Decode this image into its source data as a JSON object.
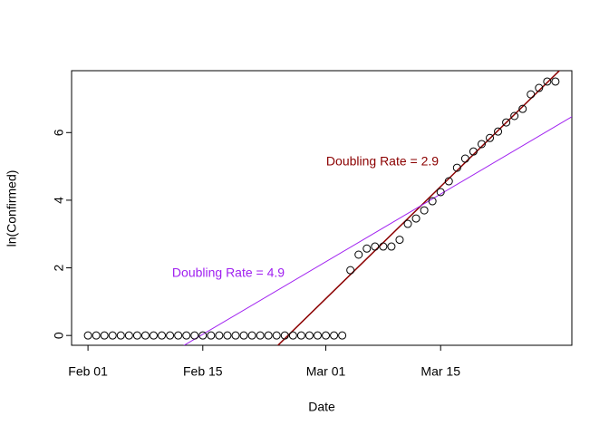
{
  "chart_data": {
    "type": "scatter",
    "xlabel": "Date",
    "ylabel": "ln(Confirmed)",
    "x": [
      "Feb 01",
      "Feb 02",
      "Feb 03",
      "Feb 04",
      "Feb 05",
      "Feb 06",
      "Feb 07",
      "Feb 08",
      "Feb 09",
      "Feb 10",
      "Feb 11",
      "Feb 12",
      "Feb 13",
      "Feb 14",
      "Feb 15",
      "Feb 16",
      "Feb 17",
      "Feb 18",
      "Feb 19",
      "Feb 20",
      "Feb 21",
      "Feb 22",
      "Feb 23",
      "Feb 24",
      "Feb 25",
      "Feb 26",
      "Feb 27",
      "Feb 28",
      "Feb 29",
      "Mar 01",
      "Mar 02",
      "Mar 03",
      "Mar 04",
      "Mar 05",
      "Mar 06",
      "Mar 07",
      "Mar 08",
      "Mar 09",
      "Mar 10",
      "Mar 11",
      "Mar 12",
      "Mar 13",
      "Mar 14",
      "Mar 15",
      "Mar 16",
      "Mar 17",
      "Mar 18",
      "Mar 19",
      "Mar 20",
      "Mar 21",
      "Mar 22",
      "Mar 23",
      "Mar 24",
      "Mar 25",
      "Mar 26",
      "Mar 27",
      "Mar 28",
      "Mar 29"
    ],
    "values": [
      0,
      0,
      0,
      0,
      0,
      0,
      0,
      0,
      0,
      0,
      0,
      0,
      0,
      0,
      0,
      0,
      0,
      0,
      0,
      0,
      0,
      0,
      0,
      0,
      0,
      0,
      0,
      0,
      0,
      0,
      0,
      0,
      1.93,
      2.39,
      2.57,
      2.63,
      2.63,
      2.63,
      2.83,
      3.3,
      3.46,
      3.7,
      3.97,
      4.24,
      4.56,
      4.96,
      5.23,
      5.44,
      5.66,
      5.84,
      6.03,
      6.3,
      6.49,
      6.7,
      7.13,
      7.32,
      7.51,
      7.51
    ],
    "color": "#000000",
    "lines": [
      {
        "label": "Doubling Rate = 2.9",
        "color": "#8b0000",
        "x": [
          "Feb 24",
          "Mar 31"
        ],
        "values": [
          -0.33,
          8.19
        ]
      },
      {
        "label": "Doubling Rate = 4.9",
        "color": "#a020f0",
        "x": [
          "Feb 10",
          "Mar 31"
        ],
        "values": [
          -0.68,
          6.47
        ]
      }
    ],
    "xlim": [
      "Jan 30",
      "Mar 31"
    ],
    "xticks": [
      "Feb 01",
      "Feb 15",
      "Mar 01",
      "Mar 15"
    ],
    "ylim": [
      -0.29,
      7.83
    ],
    "yticks": [
      0,
      2,
      4,
      6
    ]
  }
}
